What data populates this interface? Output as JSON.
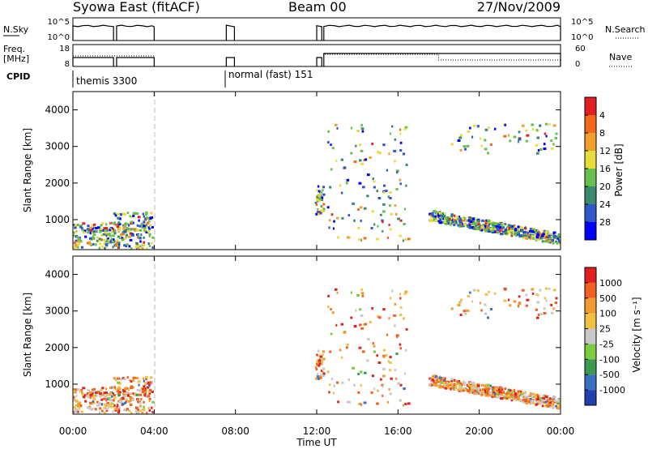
{
  "header": {
    "title": "Syowa East (fitACF)",
    "beam": "Beam 00",
    "date": "27/Nov/2009"
  },
  "nsky_panel": {
    "left_label": "N.Sky",
    "right_label": "N.Search",
    "left_ticks": [
      "10^5",
      "10^0"
    ],
    "right_ticks": [
      "10^5",
      "10^0"
    ]
  },
  "freq_panel": {
    "left_label_line1": "Freq.",
    "left_label_line2": "[MHz]",
    "right_label": "Nave",
    "left_ticks": [
      "18",
      "8"
    ],
    "right_ticks": [
      "60",
      "0"
    ]
  },
  "cpid_panel": {
    "label": "CPID",
    "modes": [
      {
        "start_hour": 0.0,
        "name": "themis 3300"
      },
      {
        "start_hour": 7.5,
        "name": "normal (fast) 151"
      }
    ]
  },
  "x_axis": {
    "label": "Time UT",
    "range_hours": [
      0,
      24
    ],
    "ticks": [
      "00:00",
      "04:00",
      "08:00",
      "12:00",
      "16:00",
      "20:00",
      "00:00"
    ]
  },
  "chart_data": [
    {
      "type": "heatmap",
      "name": "power",
      "ylabel": "Slant Range [km]",
      "ylim": [
        180,
        4500
      ],
      "yticks": [
        "1000",
        "2000",
        "3000",
        "4000"
      ],
      "colorbar_label": "Power [dB]",
      "colorbar_ticks": [
        "4",
        "8",
        "12",
        "16",
        "20",
        "24",
        "28"
      ],
      "colorbar_colors": [
        "#0000ff",
        "#2f58c8",
        "#3a8a6e",
        "#67c04c",
        "#e8dc3c",
        "#f0a02a",
        "#f06a1e",
        "#e02020"
      ]
    },
    {
      "type": "heatmap",
      "name": "velocity",
      "ylabel": "Slant Range [km]",
      "ylim": [
        180,
        4500
      ],
      "yticks": [
        "1000",
        "2000",
        "3000",
        "4000"
      ],
      "colorbar_label": "Velocity [m s⁻¹]",
      "colorbar_ticks": [
        "1000",
        "500",
        "100",
        "25",
        "-25",
        "-100",
        "-500",
        "-1000"
      ],
      "colorbar_colors": [
        "#2040b0",
        "#3a70c0",
        "#3c9a50",
        "#7acc40",
        "#c8c8c8",
        "#f0c040",
        "#f09a30",
        "#f06020",
        "#e02020"
      ]
    }
  ]
}
